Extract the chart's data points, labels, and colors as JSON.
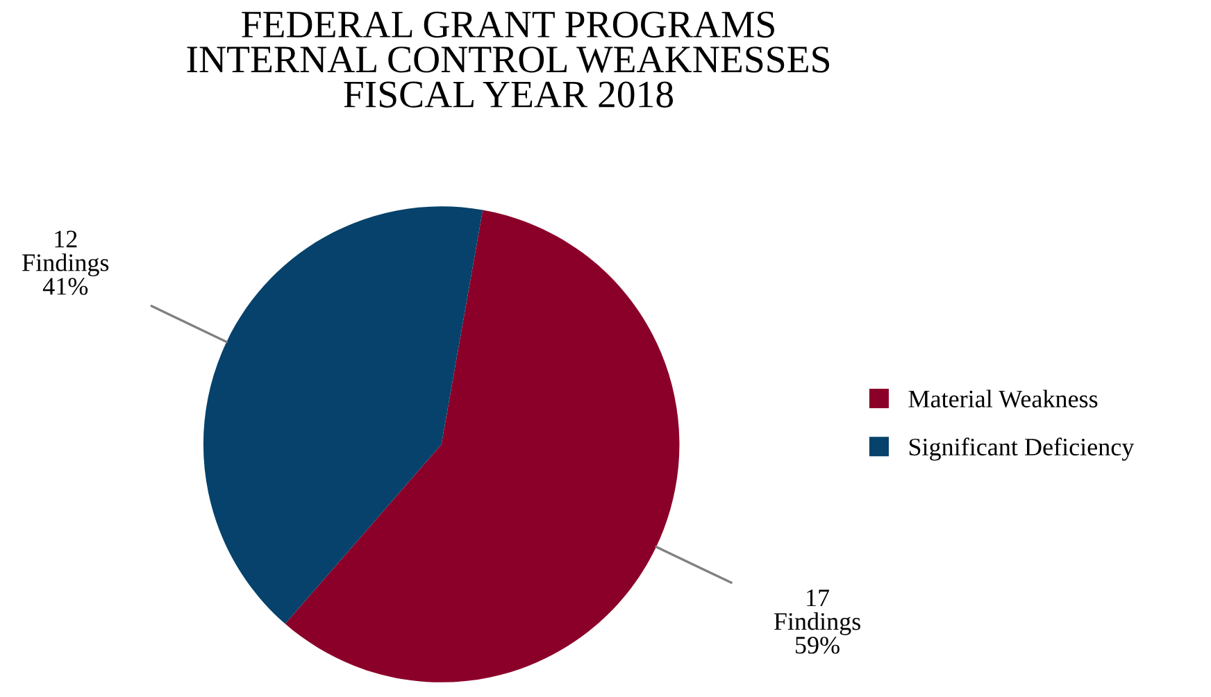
{
  "chart_data": {
    "type": "pie",
    "title": "FEDERAL GRANT PROGRAMS\nINTERNAL CONTROL WEAKNESSES\nFISCAL YEAR 2018",
    "categories": [
      "Material Weakness",
      "Significant Deficiency"
    ],
    "values": [
      17,
      12
    ],
    "colors": [
      "#8b0029",
      "#06426b"
    ],
    "value_labels": [
      "17\nFindings\n59%",
      "12\nFindings\n41%"
    ],
    "legend": "right"
  }
}
